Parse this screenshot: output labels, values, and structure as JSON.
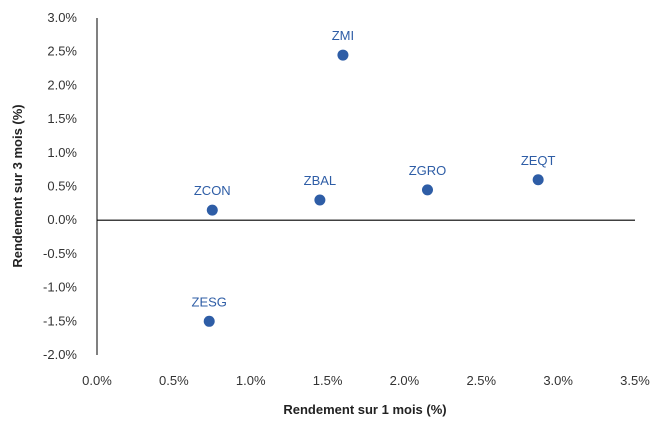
{
  "chart_data": {
    "type": "scatter",
    "title": "",
    "xlabel": "Rendement sur 1 mois (%)",
    "ylabel": "Rendement sur 3 mois (%)",
    "xlim": [
      0.0,
      3.5
    ],
    "ylim": [
      -2.0,
      3.0
    ],
    "xticks": [
      "0.0%",
      "0.5%",
      "1.0%",
      "1.5%",
      "2.0%",
      "2.5%",
      "3.0%",
      "3.5%"
    ],
    "yticks": [
      "3.0%",
      "2.5%",
      "2.0%",
      "1.5%",
      "1.0%",
      "0.5%",
      "0.0%",
      "-0.5%",
      "-1.0%",
      "-1.5%",
      "-2.0%"
    ],
    "grid": false,
    "legend": "none",
    "point_color": "#2e5da6",
    "points": [
      {
        "label": "ZMI",
        "x": 1.6,
        "y": 2.45
      },
      {
        "label": "ZCON",
        "x": 0.75,
        "y": 0.15
      },
      {
        "label": "ZBAL",
        "x": 1.45,
        "y": 0.3
      },
      {
        "label": "ZGRO",
        "x": 2.15,
        "y": 0.45
      },
      {
        "label": "ZEQT",
        "x": 2.87,
        "y": 0.6
      },
      {
        "label": "ZESG",
        "x": 0.73,
        "y": -1.5
      }
    ]
  }
}
